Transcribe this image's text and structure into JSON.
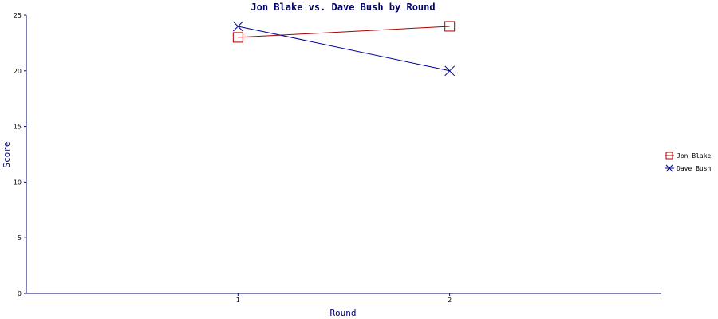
{
  "chart_data": {
    "type": "line",
    "title": "Jon Blake vs. Dave Bush by Round",
    "xlabel": "Round",
    "ylabel": "Score",
    "categories": [
      "1",
      "2"
    ],
    "x": [
      1,
      2
    ],
    "xlim": [
      0,
      3
    ],
    "ylim": [
      0,
      25
    ],
    "yticks": [
      "0",
      "5",
      "10",
      "15",
      "20",
      "25"
    ],
    "grid": false,
    "legend_position": "right",
    "series": [
      {
        "name": "Jon Blake",
        "values": [
          23,
          24
        ],
        "color": "#aa0000",
        "marker": "square"
      },
      {
        "name": "Dave Bush",
        "values": [
          24,
          20
        ],
        "color": "#000099",
        "marker": "x"
      }
    ],
    "axis_color": "#000066"
  }
}
